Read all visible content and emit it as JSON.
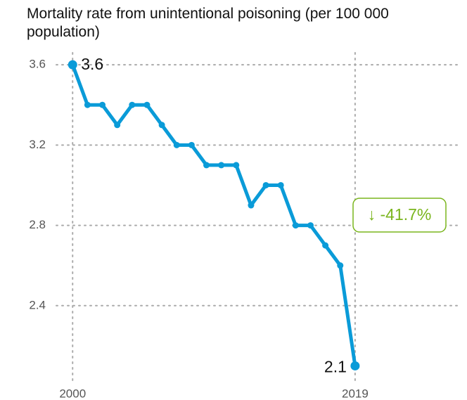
{
  "chart_data": {
    "type": "line",
    "title": "Mortality rate from unintentional poisoning (per 100 000 population)",
    "x": [
      2000,
      2001,
      2002,
      2003,
      2004,
      2005,
      2006,
      2007,
      2008,
      2009,
      2010,
      2011,
      2012,
      2013,
      2014,
      2015,
      2016,
      2017,
      2018,
      2019
    ],
    "series": [
      {
        "name": "Mortality rate",
        "color": "#0a9bd8",
        "values": [
          3.6,
          3.4,
          3.4,
          3.3,
          3.4,
          3.4,
          3.3,
          3.2,
          3.2,
          3.1,
          3.1,
          3.1,
          2.9,
          3.0,
          3.0,
          2.8,
          2.8,
          2.7,
          2.6,
          2.1
        ]
      }
    ],
    "xlim": [
      1998.9,
      2026.1
    ],
    "xticks": [
      2000,
      2019
    ],
    "ylim": [
      2.0,
      3.66
    ],
    "yticks": [
      {
        "value": 2.4,
        "label": "2.4"
      },
      {
        "value": 2.8,
        "label": "2.8"
      },
      {
        "value": 3.2,
        "label": "3.2"
      },
      {
        "value": 3.6,
        "label": "3.6"
      }
    ],
    "grid": true,
    "change": {
      "value": -41.7,
      "label": "↓ -41.7%",
      "color": "#7ab51d"
    }
  }
}
